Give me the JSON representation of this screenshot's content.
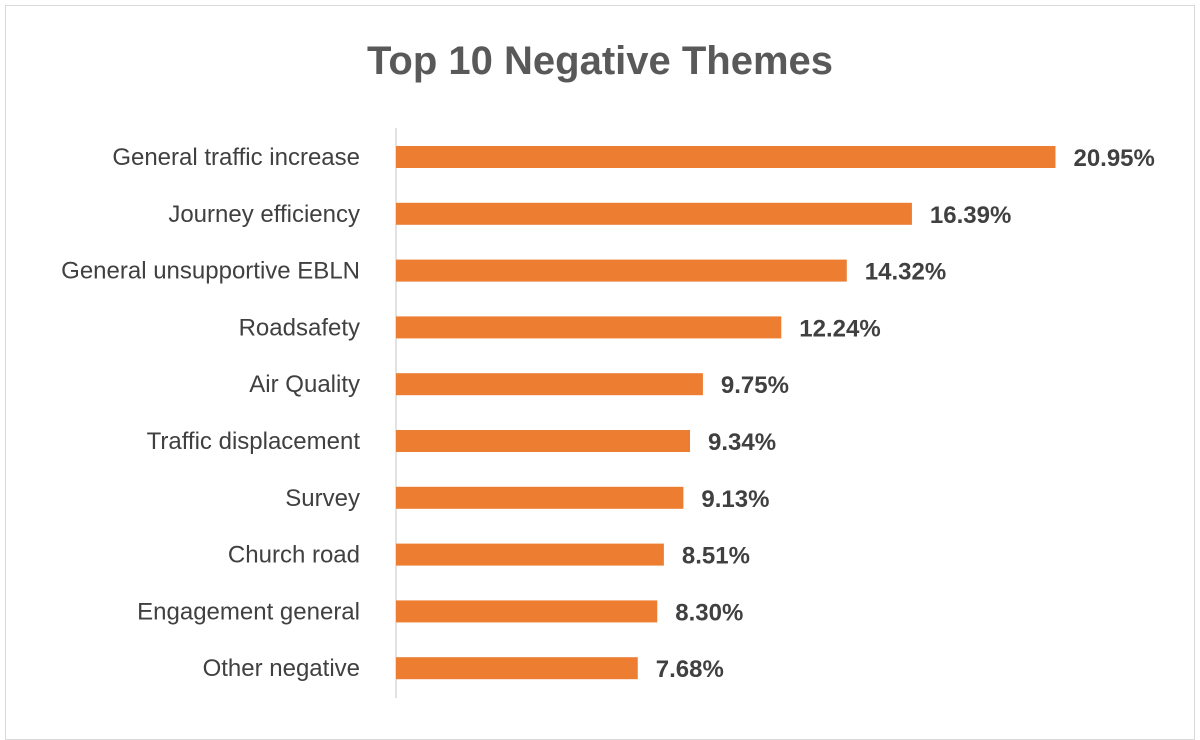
{
  "chart_data": {
    "type": "bar",
    "orientation": "horizontal",
    "title": "Top 10 Negative Themes",
    "xlabel": "",
    "ylabel": "",
    "categories": [
      "General traffic increase",
      "Journey efficiency",
      "General unsupportive EBLN",
      "Roadsafety",
      "Air Quality",
      "Traffic displacement",
      "Survey",
      "Church road",
      "Engagement general",
      "Other negative"
    ],
    "values": [
      20.95,
      16.39,
      14.32,
      12.24,
      9.75,
      9.34,
      9.13,
      8.51,
      8.3,
      7.68
    ],
    "value_labels": [
      "20.95%",
      "16.39%",
      "14.32%",
      "12.24%",
      "9.75%",
      "9.34%",
      "9.13%",
      "8.51%",
      "8.30%",
      "7.68%"
    ],
    "xlim": [
      0,
      23
    ],
    "grid": false,
    "legend": "none",
    "bar_color": "#ED7D31",
    "axis_color": "#d9d9d9"
  }
}
